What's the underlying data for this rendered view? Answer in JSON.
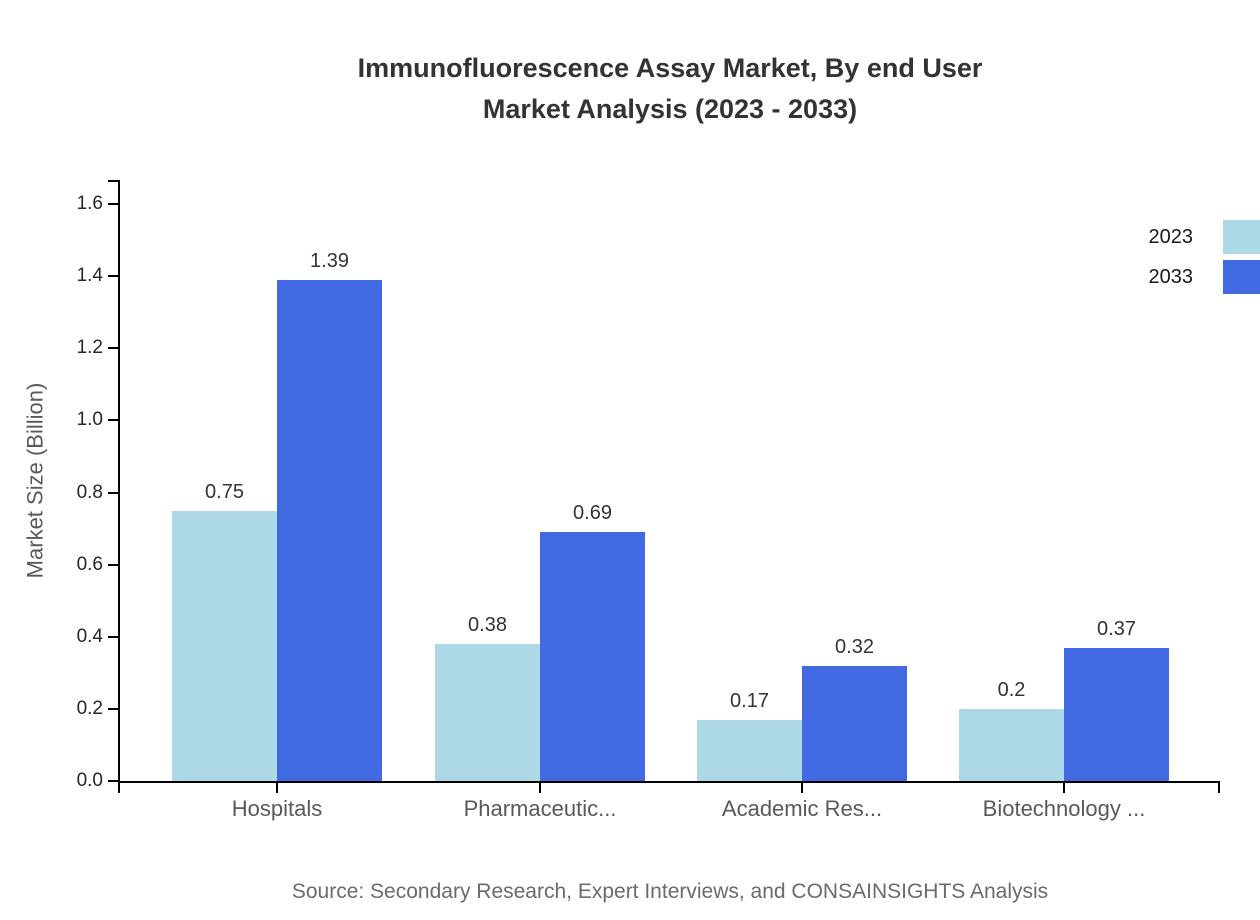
{
  "title": "Immunofluorescence Assay Market, By end User\nMarket Analysis (2023 - 2033)",
  "source_note": "Source: Secondary Research, Expert Interviews, and CONSAINSIGHTS Analysis",
  "colors": {
    "series_2023": "#ADD8E6",
    "series_2033": "#4169E1",
    "axis": "#000000",
    "title_text": "#333333",
    "y_tick_text": "#262626",
    "category_text": "#595959",
    "value_label_text": "#333333",
    "legend_text": "#1a1a1a",
    "source_text": "#6b6b6b",
    "background": "#ffffff"
  },
  "chart_data": {
    "type": "bar",
    "title": "Immunofluorescence Assay Market, By end User Market Analysis (2023 - 2033)",
    "categories": [
      "Hospitals",
      "Pharmaceutic...",
      "Academic Res...",
      "Biotechnology ..."
    ],
    "series": [
      {
        "name": "2023",
        "color": "#ADD8E6",
        "values": [
          0.75,
          0.38,
          0.17,
          0.2
        ]
      },
      {
        "name": "2033",
        "color": "#4169E1",
        "values": [
          1.39,
          0.69,
          0.32,
          0.37
        ]
      }
    ],
    "xlabel": "",
    "ylabel": "Market Size (Billion)",
    "ylim": [
      0,
      1.667
    ],
    "yticks": [
      0.0,
      0.2,
      0.4,
      0.6,
      0.8,
      1.0,
      1.2,
      1.4,
      1.6
    ],
    "grid": false,
    "legend_position": "top-right",
    "value_labels": true
  }
}
